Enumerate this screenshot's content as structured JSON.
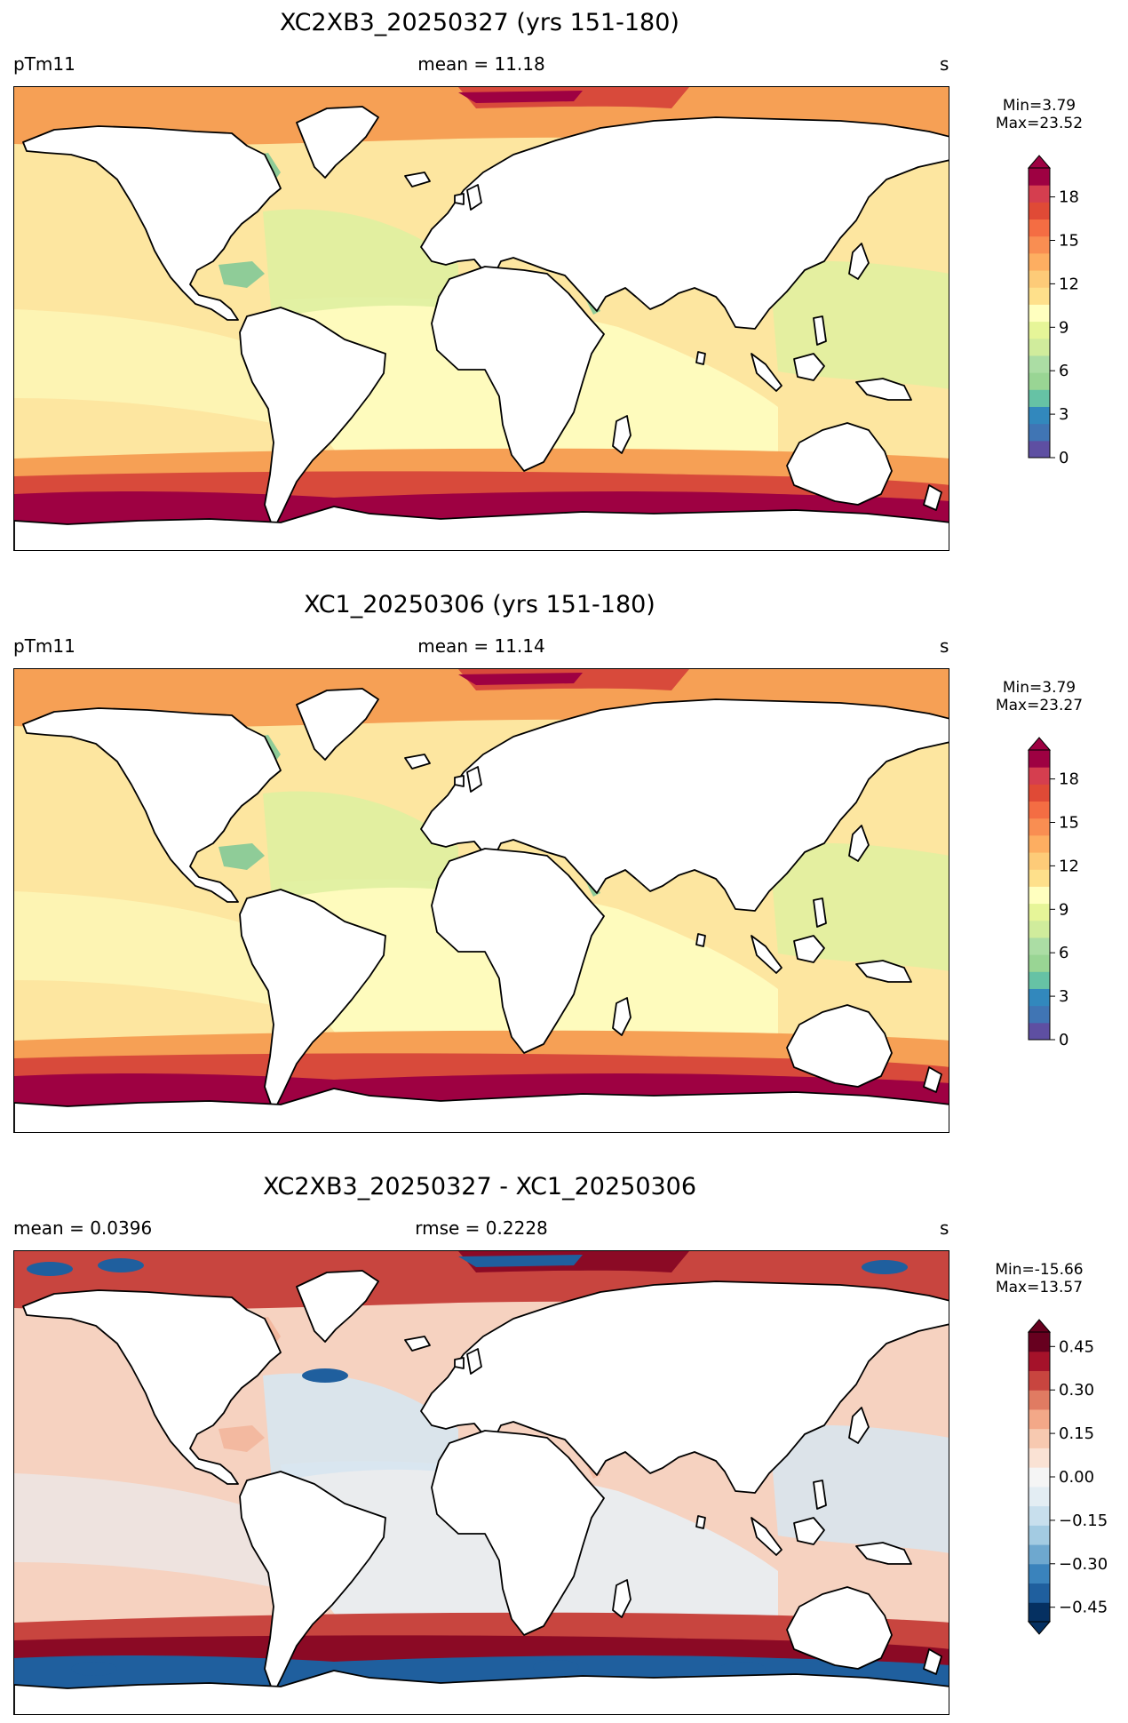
{
  "panels": [
    {
      "title": "XC2XB3_20250327 (yrs 151-180)",
      "left_label": "pTm11",
      "center_label": "mean = 11.18",
      "right_label": "s",
      "min_text": "Min=3.79",
      "max_text": "Max=23.52",
      "colorbar": {
        "type": "sequential",
        "range": [
          0,
          20
        ],
        "ticks": [
          "0",
          "3",
          "6",
          "9",
          "12",
          "15",
          "18"
        ],
        "tick_values": [
          0,
          3,
          6,
          9,
          12,
          15,
          18
        ],
        "colors": [
          "#5e4fa2",
          "#4075b4",
          "#3288bd",
          "#66c2a5",
          "#99d594",
          "#abdda4",
          "#d0ec9c",
          "#e6f598",
          "#ffffbf",
          "#fee08b",
          "#fdcb78",
          "#fdae61",
          "#f98e52",
          "#f46d43",
          "#e04a36",
          "#d53e4f",
          "#9e0142"
        ]
      },
      "map_colors": {
        "ocean_base": "#fde6a0",
        "central_tropics": "#fefdc0",
        "coastal_low": "#dff0a0",
        "marginal_seas": "#8fcc98",
        "high_lat_mid": "#f6a055",
        "high_lat_high": "#d84a3b",
        "extreme": "#9e0142"
      }
    },
    {
      "title": "XC1_20250306 (yrs 151-180)",
      "left_label": "pTm11",
      "center_label": "mean = 11.14",
      "right_label": "s",
      "min_text": "Min=3.79",
      "max_text": "Max=23.27",
      "colorbar": {
        "type": "sequential",
        "range": [
          0,
          20
        ],
        "ticks": [
          "0",
          "3",
          "6",
          "9",
          "12",
          "15",
          "18"
        ],
        "tick_values": [
          0,
          3,
          6,
          9,
          12,
          15,
          18
        ],
        "colors": [
          "#5e4fa2",
          "#4075b4",
          "#3288bd",
          "#66c2a5",
          "#99d594",
          "#abdda4",
          "#d0ec9c",
          "#e6f598",
          "#ffffbf",
          "#fee08b",
          "#fdcb78",
          "#fdae61",
          "#f98e52",
          "#f46d43",
          "#e04a36",
          "#d53e4f",
          "#9e0142"
        ]
      },
      "map_colors": {
        "ocean_base": "#fde6a0",
        "central_tropics": "#fefdc0",
        "coastal_low": "#dff0a0",
        "marginal_seas": "#8fcc98",
        "high_lat_mid": "#f6a055",
        "high_lat_high": "#d84a3b",
        "extreme": "#9e0142"
      }
    },
    {
      "title": "XC2XB3_20250327 - XC1_20250306",
      "left_label": "mean = 0.0396",
      "center_label": "rmse = 0.2228",
      "right_label": "s",
      "min_text": "Min=-15.66",
      "max_text": "Max=13.57",
      "colorbar": {
        "type": "diverging",
        "range": [
          -0.5,
          0.5
        ],
        "ticks": [
          "−0.45",
          "−0.30",
          "−0.15",
          "0.00",
          "0.15",
          "0.30",
          "0.45"
        ],
        "tick_values": [
          -0.45,
          -0.3,
          -0.15,
          0.0,
          0.15,
          0.3,
          0.45
        ],
        "colors": [
          "#053061",
          "#1f5f9e",
          "#3a83bc",
          "#6ea8cf",
          "#a3cbe2",
          "#c8dfed",
          "#e3edf3",
          "#f5f5f5",
          "#fae2d4",
          "#f7c9b0",
          "#f3a888",
          "#e07b62",
          "#c8453f",
          "#a5122a",
          "#67001f"
        ]
      },
      "map_colors": {
        "ocean_base": "#f6d2c0",
        "central_tropics": "#e9eef3",
        "coastal_low": "#d7e6f0",
        "marginal_seas": "#f3b9a0",
        "high_lat_mid": "#c8453f",
        "high_lat_high": "#8b0a25",
        "extreme": "#1f5f9e"
      }
    }
  ]
}
